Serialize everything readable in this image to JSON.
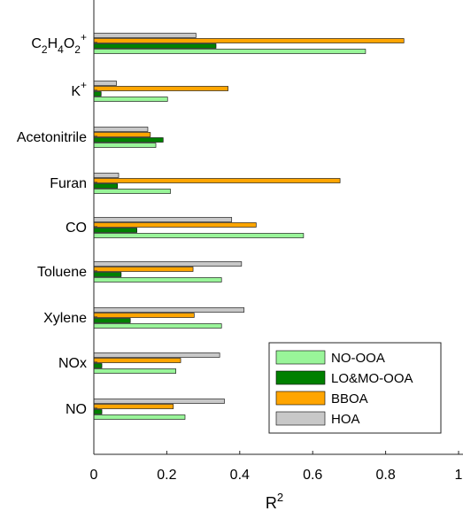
{
  "chart_data": {
    "type": "bar",
    "orientation": "horizontal",
    "categories": [
      "C2H4O2+",
      "K+",
      "Acetonitrile",
      "Furan",
      "CO",
      "Toluene",
      "Xylene",
      "NOx",
      "NO"
    ],
    "category_labels": [
      {
        "text": "C2H4O2+",
        "parts": [
          {
            "t": "C",
            "s": "n"
          },
          {
            "t": "2",
            "s": "sub"
          },
          {
            "t": "H",
            "s": "n"
          },
          {
            "t": "4",
            "s": "sub"
          },
          {
            "t": "O",
            "s": "n"
          },
          {
            "t": "2",
            "s": "sub"
          },
          {
            "t": "+",
            "s": "sup"
          }
        ]
      },
      {
        "text": "K+",
        "parts": [
          {
            "t": "K",
            "s": "n"
          },
          {
            "t": "+",
            "s": "sup"
          }
        ]
      },
      {
        "text": "Acetonitrile",
        "parts": [
          {
            "t": "Acetonitrile",
            "s": "n"
          }
        ]
      },
      {
        "text": "Furan",
        "parts": [
          {
            "t": "Furan",
            "s": "n"
          }
        ]
      },
      {
        "text": "CO",
        "parts": [
          {
            "t": "CO",
            "s": "n"
          }
        ]
      },
      {
        "text": "Toluene",
        "parts": [
          {
            "t": "Toluene",
            "s": "n"
          }
        ]
      },
      {
        "text": "Xylene",
        "parts": [
          {
            "t": "Xylene",
            "s": "n"
          }
        ]
      },
      {
        "text": "NOx",
        "parts": [
          {
            "t": "NOx",
            "s": "n"
          }
        ]
      },
      {
        "text": "NO",
        "parts": [
          {
            "t": "NO",
            "s": "n"
          }
        ]
      }
    ],
    "series": [
      {
        "name": "NO-OOA",
        "color": "#99f599",
        "values": [
          0.745,
          0.202,
          0.17,
          0.21,
          0.575,
          0.35,
          0.35,
          0.225,
          0.25
        ]
      },
      {
        "name": "LO&MO-OOA",
        "color": "#008000",
        "values": [
          0.335,
          0.02,
          0.19,
          0.065,
          0.118,
          0.075,
          0.1,
          0.022,
          0.022
        ]
      },
      {
        "name": "BBOA",
        "color": "#ffa500",
        "values": [
          0.85,
          0.368,
          0.155,
          0.675,
          0.445,
          0.272,
          0.275,
          0.238,
          0.218
        ]
      },
      {
        "name": "HOA",
        "color": "#c8c8c8",
        "values": [
          0.28,
          0.062,
          0.148,
          0.068,
          0.378,
          0.405,
          0.412,
          0.345,
          0.358
        ]
      }
    ],
    "x_ticks": [
      "0",
      "0.2",
      "0.4",
      "0.6",
      "0.8",
      "1"
    ],
    "xlim": [
      0,
      1
    ],
    "xlabel": {
      "text": "R2",
      "base": "R",
      "sup": "2"
    },
    "ylabel": "",
    "title": "",
    "grid": false,
    "legend_position": "bottom-right"
  }
}
